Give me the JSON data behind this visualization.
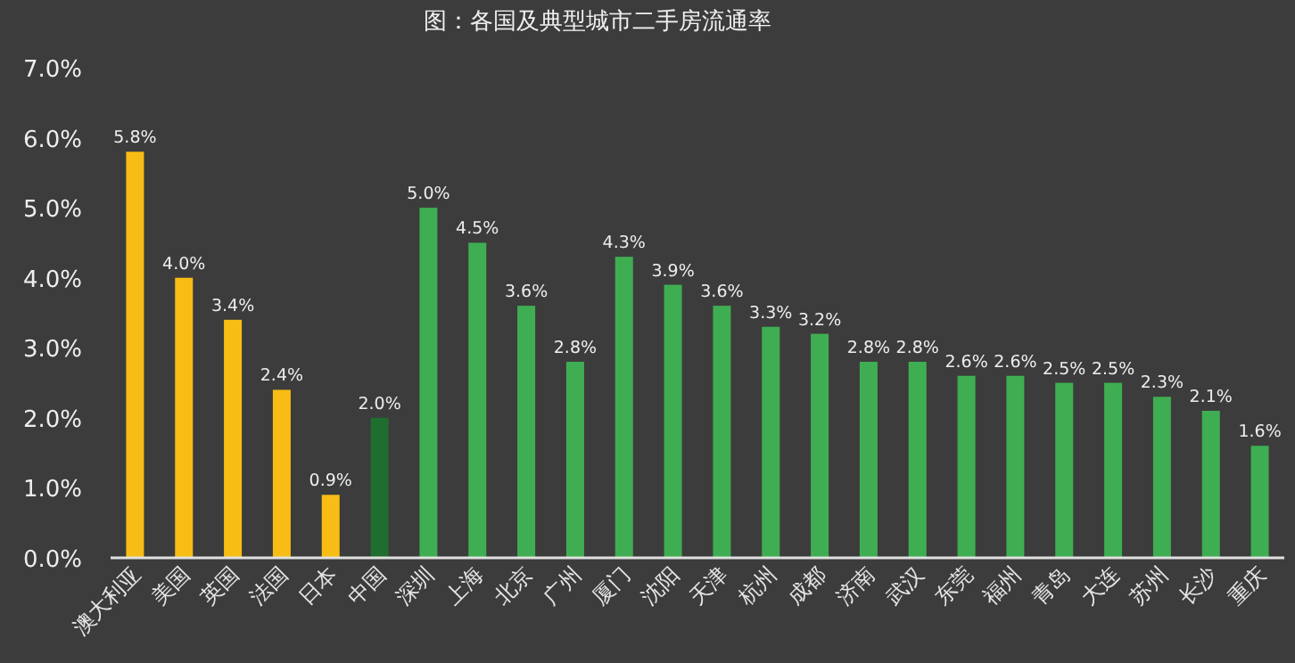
{
  "chart_data": {
    "type": "bar",
    "title": "图：各国及典型城市二手房流通率",
    "categories": [
      "澳大利亚",
      "美国",
      "英国",
      "法国",
      "日本",
      "中国",
      "深圳",
      "上海",
      "北京",
      "广州",
      "厦门",
      "沈阳",
      "天津",
      "杭州",
      "成都",
      "济南",
      "武汉",
      "东莞",
      "福州",
      "青岛",
      "大连",
      "苏州",
      "长沙",
      "重庆"
    ],
    "values": [
      5.8,
      4.0,
      3.4,
      2.4,
      0.9,
      2.0,
      5.0,
      4.5,
      3.6,
      2.8,
      4.3,
      3.9,
      3.6,
      3.3,
      3.2,
      2.8,
      2.8,
      2.6,
      2.6,
      2.5,
      2.5,
      2.3,
      2.1,
      1.6
    ],
    "value_labels": [
      "5.8%",
      "4.0%",
      "3.4%",
      "2.4%",
      "0.9%",
      "2.0%",
      "5.0%",
      "4.5%",
      "3.6%",
      "2.8%",
      "4.3%",
      "3.9%",
      "3.6%",
      "3.3%",
      "3.2%",
      "2.8%",
      "2.8%",
      "2.6%",
      "2.6%",
      "2.5%",
      "2.5%",
      "2.3%",
      "2.1%",
      "1.6%"
    ],
    "colors": [
      "#f7bd14",
      "#f7bd14",
      "#f7bd14",
      "#f7bd14",
      "#f7bd14",
      "#1f6e30",
      "#3fae52",
      "#3fae52",
      "#3fae52",
      "#3fae52",
      "#3fae52",
      "#3fae52",
      "#3fae52",
      "#3fae52",
      "#3fae52",
      "#3fae52",
      "#3fae52",
      "#3fae52",
      "#3fae52",
      "#3fae52",
      "#3fae52",
      "#3fae52",
      "#3fae52",
      "#3fae52"
    ],
    "ylim": [
      0,
      7
    ],
    "yticks": [
      {
        "value": 0,
        "label": "0.0%"
      },
      {
        "value": 1,
        "label": "1.0%"
      },
      {
        "value": 2,
        "label": "2.0%"
      },
      {
        "value": 3,
        "label": "3.0%"
      },
      {
        "value": 4,
        "label": "4.0%"
      },
      {
        "value": 5,
        "label": "5.0%"
      },
      {
        "value": 6,
        "label": "6.0%"
      },
      {
        "value": 7,
        "label": "7.0%"
      }
    ],
    "grid": false
  }
}
